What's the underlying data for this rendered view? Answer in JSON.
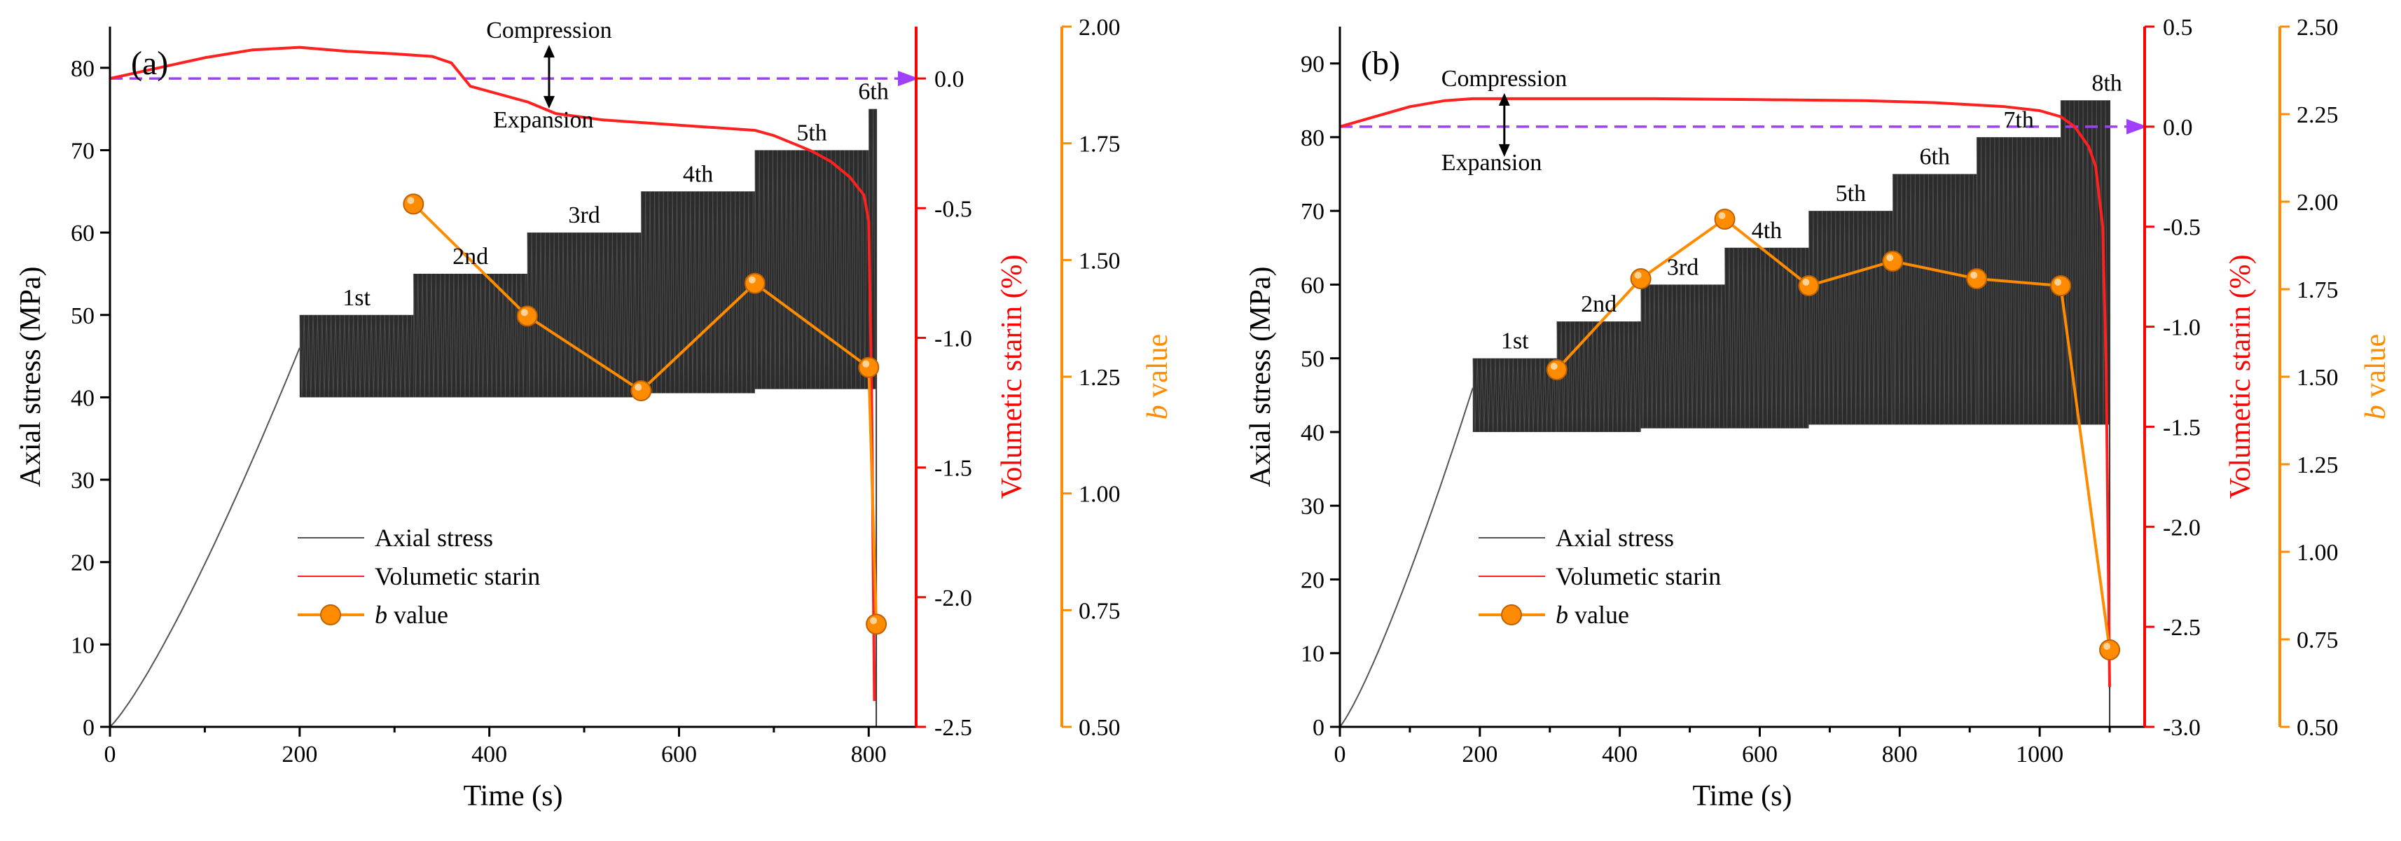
{
  "chart_data": [
    {
      "type": "line",
      "panel_label": "(a)",
      "xlabel": "Time (s)",
      "ylabel_left": "Axial stress (MPa)",
      "ylabel_right1": "Volumetic starin (%)",
      "ylabel_right2": "b value",
      "ylabel_right2_italic": "b",
      "ylabel_right2_rest": " value",
      "xlim": [
        0,
        850
      ],
      "xticks": [
        0,
        200,
        400,
        600,
        800
      ],
      "ylim_left": [
        0,
        85
      ],
      "yticks_left": [
        0,
        10,
        20,
        30,
        40,
        50,
        60,
        70,
        80
      ],
      "ylim_right1": [
        -2.5,
        0.2
      ],
      "yticks_right1": [
        -2.5,
        -2.0,
        -1.5,
        -1.0,
        -0.5,
        0.0
      ],
      "yticks_right1_labels": [
        "-2.5",
        "-2.0",
        "-1.5",
        "-1.0",
        "-0.5",
        "0.0"
      ],
      "ylim_right2": [
        0.5,
        2.0
      ],
      "yticks_right2": [
        0.5,
        0.75,
        1.0,
        1.25,
        1.5,
        1.75,
        2.0
      ],
      "yticks_right2_labels": [
        "0.50",
        "0.75",
        "1.00",
        "1.25",
        "1.50",
        "1.75",
        "2.00"
      ],
      "cycle_labels": [
        "1st",
        "2nd",
        "3rd",
        "4th",
        "5th",
        "6th"
      ],
      "cycles": [
        {
          "t0": 200,
          "t1": 320,
          "max": 50,
          "min": 40
        },
        {
          "t0": 320,
          "t1": 440,
          "max": 55,
          "min": 40
        },
        {
          "t0": 440,
          "t1": 560,
          "max": 60,
          "min": 40
        },
        {
          "t0": 560,
          "t1": 680,
          "max": 65,
          "min": 40.5
        },
        {
          "t0": 680,
          "t1": 800,
          "max": 70,
          "min": 41
        },
        {
          "t0": 800,
          "t1": 808,
          "max": 75,
          "min": 41
        }
      ],
      "stress_preload": {
        "t_end": 200,
        "stress_end": 46
      },
      "volumetric_strain": {
        "t": [
          0,
          50,
          100,
          150,
          200,
          250,
          300,
          340,
          360,
          380,
          420,
          440,
          470,
          520,
          560,
          600,
          640,
          680,
          700,
          720,
          740,
          760,
          780,
          795,
          800,
          803,
          806
        ],
        "v": [
          0.0,
          0.04,
          0.08,
          0.11,
          0.12,
          0.105,
          0.095,
          0.085,
          0.06,
          -0.03,
          -0.07,
          -0.09,
          -0.135,
          -0.16,
          -0.17,
          -0.18,
          -0.19,
          -0.2,
          -0.22,
          -0.25,
          -0.28,
          -0.32,
          -0.38,
          -0.45,
          -0.55,
          -1.2,
          -2.4
        ]
      },
      "b_value": {
        "t": [
          320,
          440,
          560,
          680,
          800,
          808
        ],
        "b": [
          1.62,
          1.38,
          1.22,
          1.45,
          1.27,
          0.72
        ]
      },
      "compression_label": "Compression",
      "expansion_label": "Expansion",
      "legend": {
        "axial_stress": "Axial stress",
        "volumetric": "Volumetic starin",
        "b_italic": "b",
        "b_rest": " value"
      },
      "legend_position": "lower-left",
      "colors": {
        "stress": "#333333",
        "strain": "#ff2020",
        "b": "#ff8c00",
        "zero": "#a040ff",
        "stress_fill": "#1a1a1a"
      }
    },
    {
      "type": "line",
      "panel_label": "(b)",
      "xlabel": "Time (s)",
      "ylabel_left": "Axial stress (MPa)",
      "ylabel_right1": "Volumetic starin (%)",
      "ylabel_right2": "b value",
      "ylabel_right2_italic": "b",
      "ylabel_right2_rest": " value",
      "xlim": [
        0,
        1150
      ],
      "xticks": [
        0,
        200,
        400,
        600,
        800,
        1000
      ],
      "ylim_left": [
        0,
        95
      ],
      "yticks_left": [
        0,
        10,
        20,
        30,
        40,
        50,
        60,
        70,
        80,
        90
      ],
      "ylim_right1": [
        -3.0,
        0.5
      ],
      "yticks_right1": [
        -3.0,
        -2.5,
        -2.0,
        -1.5,
        -1.0,
        -0.5,
        0.0,
        0.5
      ],
      "yticks_right1_labels": [
        "-3.0",
        "-2.5",
        "-2.0",
        "-1.5",
        "-1.0",
        "-0.5",
        "0.0",
        "0.5"
      ],
      "ylim_right2": [
        0.5,
        2.5
      ],
      "yticks_right2": [
        0.5,
        0.75,
        1.0,
        1.25,
        1.5,
        1.75,
        2.0,
        2.25,
        2.5
      ],
      "yticks_right2_labels": [
        "0.50",
        "0.75",
        "1.00",
        "1.25",
        "1.50",
        "1.75",
        "2.00",
        "2.25",
        "2.50"
      ],
      "cycle_labels": [
        "1st",
        "2nd",
        "3rd",
        "4th",
        "5th",
        "6th",
        "7th",
        "8th"
      ],
      "cycles": [
        {
          "t0": 190,
          "t1": 310,
          "max": 50,
          "min": 40
        },
        {
          "t0": 310,
          "t1": 430,
          "max": 55,
          "min": 40
        },
        {
          "t0": 430,
          "t1": 550,
          "max": 60,
          "min": 40.5
        },
        {
          "t0": 550,
          "t1": 670,
          "max": 65,
          "min": 40.5
        },
        {
          "t0": 670,
          "t1": 790,
          "max": 70,
          "min": 41
        },
        {
          "t0": 790,
          "t1": 910,
          "max": 75,
          "min": 41
        },
        {
          "t0": 910,
          "t1": 1030,
          "max": 80,
          "min": 41
        },
        {
          "t0": 1030,
          "t1": 1100,
          "max": 85,
          "min": 41
        }
      ],
      "stress_preload": {
        "t_end": 190,
        "stress_end": 46
      },
      "volumetric_strain": {
        "t": [
          0,
          50,
          100,
          150,
          190,
          300,
          450,
          600,
          750,
          850,
          950,
          1000,
          1030,
          1050,
          1070,
          1080,
          1090,
          1095,
          1100
        ],
        "v": [
          0.0,
          0.05,
          0.1,
          0.13,
          0.14,
          0.14,
          0.14,
          0.135,
          0.13,
          0.12,
          0.1,
          0.08,
          0.05,
          0.0,
          -0.1,
          -0.2,
          -0.5,
          -1.2,
          -2.8
        ]
      },
      "b_value": {
        "t": [
          310,
          430,
          550,
          670,
          790,
          910,
          1030,
          1100
        ],
        "b": [
          1.52,
          1.78,
          1.95,
          1.76,
          1.83,
          1.78,
          1.76,
          0.72
        ]
      },
      "compression_label": "Compression",
      "expansion_label": "Expansion",
      "legend": {
        "axial_stress": "Axial stress",
        "volumetric": "Volumetic starin",
        "b_italic": "b",
        "b_rest": " value"
      },
      "legend_position": "lower-left",
      "colors": {
        "stress": "#333333",
        "strain": "#ff2020",
        "b": "#ff8c00",
        "zero": "#a040ff",
        "stress_fill": "#1a1a1a"
      }
    }
  ]
}
